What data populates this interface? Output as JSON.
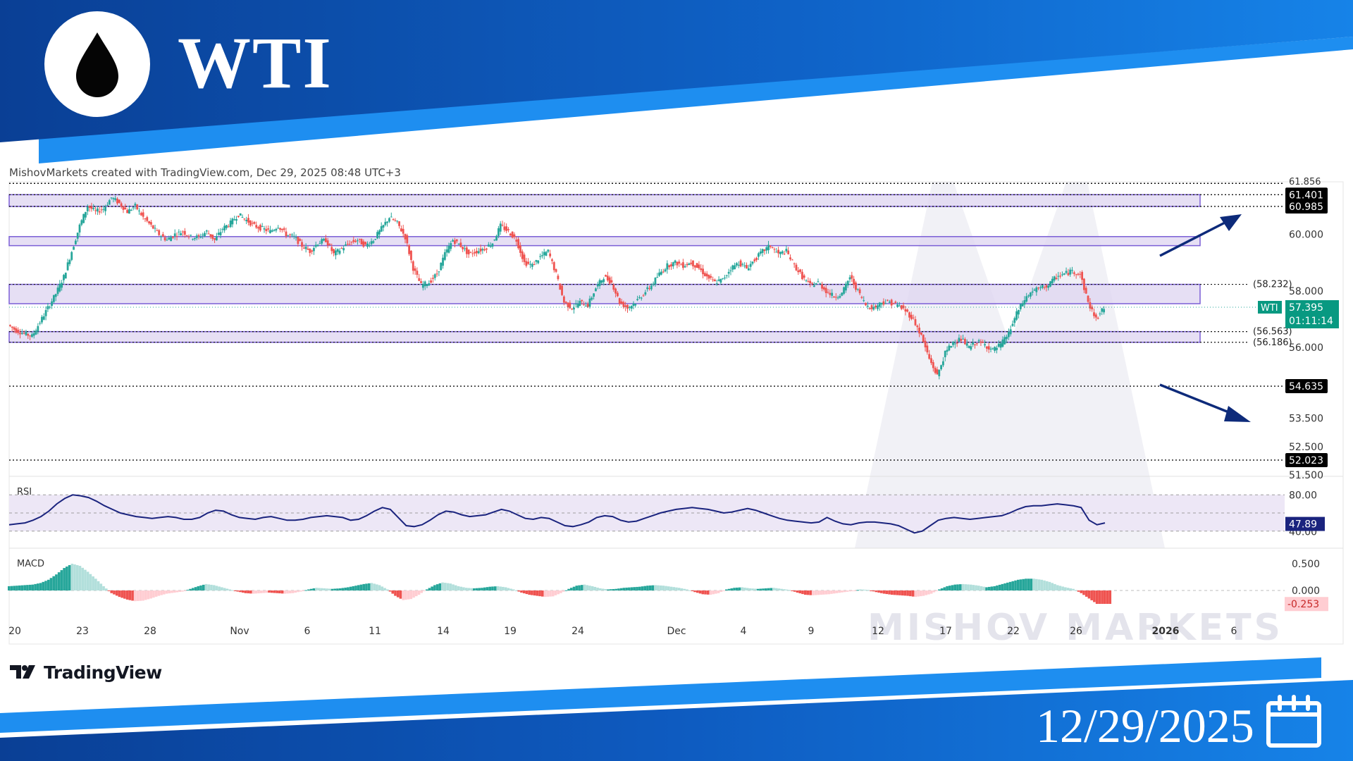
{
  "header": {
    "title": "WTI",
    "icon": "oil-drop-icon",
    "colors": {
      "banner": "#0d47a1",
      "accent": "#1e88e5"
    }
  },
  "caption": "MishovMarkets created with TradingView.com, Dec 29, 2025 08:48 UTC+3",
  "footer": {
    "tradingview_label": "TradingView",
    "date": "12/29/2025",
    "calendar_icon": "calendar-icon"
  },
  "watermark": "MISHOV MARKETS",
  "chart_data": {
    "type": "candlestick",
    "symbol": "WTI",
    "last_price": "57.395",
    "countdown": "01:11:14",
    "ylim": [
      51.5,
      61.856
    ],
    "y_ticks": [
      "60.000",
      "58.000",
      "56.000",
      "53.500",
      "52.500",
      "51.500"
    ],
    "y_top_partial": "61.856",
    "x_ticks": [
      "20",
      "23",
      "28",
      "Nov",
      "6",
      "11",
      "14",
      "19",
      "24",
      "Dec",
      "4",
      "9",
      "12",
      "17",
      "22",
      "26",
      "2026",
      "6"
    ],
    "levels_boxed": [
      "61.401",
      "60.985",
      "54.635",
      "52.023"
    ],
    "levels_plain": [
      "(58.232)",
      "(56.563)",
      "(56.186)"
    ],
    "zones": [
      {
        "low": 60.985,
        "high": 61.401
      },
      {
        "low": 59.6,
        "high": 59.92
      },
      {
        "low": 57.55,
        "high": 58.232
      },
      {
        "low": 56.186,
        "high": 56.563
      }
    ],
    "arrows": [
      "up-right arrow above resistance",
      "down-right arrow below support"
    ],
    "price_path": [
      56.8,
      56.6,
      56.5,
      56.4,
      56.9,
      57.4,
      57.9,
      58.5,
      59.4,
      60.3,
      61.0,
      60.8,
      60.9,
      61.3,
      61.1,
      60.8,
      61.0,
      60.6,
      60.3,
      60.0,
      59.8,
      60.0,
      60.1,
      59.9,
      59.9,
      60.1,
      59.8,
      60.2,
      60.4,
      60.7,
      60.5,
      60.3,
      60.2,
      60.1,
      60.3,
      60.0,
      59.9,
      59.6,
      59.4,
      59.7,
      59.8,
      59.3,
      59.5,
      59.7,
      59.8,
      59.6,
      59.8,
      60.2,
      60.6,
      60.4,
      59.9,
      58.8,
      58.2,
      58.3,
      58.6,
      59.3,
      59.8,
      59.6,
      59.3,
      59.4,
      59.5,
      59.7,
      60.3,
      60.1,
      59.8,
      59.0,
      58.9,
      59.2,
      59.4,
      58.6,
      57.6,
      57.4,
      57.6,
      57.5,
      58.1,
      58.5,
      58.3,
      57.6,
      57.4,
      57.6,
      57.9,
      58.2,
      58.6,
      58.9,
      59.0,
      58.9,
      59.0,
      58.8,
      58.5,
      58.3,
      58.4,
      58.8,
      59.0,
      58.8,
      59.1,
      59.4,
      59.6,
      59.3,
      59.4,
      58.9,
      58.5,
      58.2,
      58.3,
      58.0,
      57.8,
      57.9,
      58.5,
      58.0,
      57.5,
      57.4,
      57.6,
      57.6,
      57.5,
      57.3,
      57.0,
      56.4,
      55.6,
      55.0,
      55.8,
      56.2,
      56.3,
      56.0,
      56.2,
      56.1,
      55.9,
      56.1,
      56.5,
      57.2,
      57.7,
      58.0,
      58.1,
      58.2,
      58.5,
      58.6,
      58.7,
      58.6,
      57.6,
      57.0,
      57.4
    ],
    "rsi": {
      "label": "RSI",
      "value": "47.89",
      "ticks": [
        "80.00",
        "40.00"
      ],
      "band": [
        40,
        80
      ],
      "path": [
        47,
        48,
        49,
        52,
        56,
        62,
        70,
        76,
        80,
        79,
        77,
        73,
        68,
        64,
        60,
        58,
        56,
        55,
        54,
        55,
        56,
        55,
        53,
        53,
        55,
        60,
        63,
        62,
        58,
        55,
        54,
        53,
        55,
        56,
        54,
        52,
        52,
        53,
        55,
        56,
        57,
        56,
        55,
        52,
        53,
        57,
        62,
        66,
        64,
        55,
        46,
        45,
        47,
        52,
        58,
        62,
        61,
        58,
        56,
        57,
        58,
        61,
        64,
        62,
        58,
        54,
        53,
        55,
        54,
        50,
        46,
        45,
        47,
        50,
        55,
        57,
        56,
        52,
        50,
        51,
        54,
        57,
        60,
        62,
        64,
        65,
        66,
        65,
        64,
        62,
        60,
        61,
        63,
        65,
        63,
        60,
        57,
        54,
        52,
        51,
        50,
        49,
        50,
        55,
        51,
        48,
        47,
        49,
        50,
        50,
        49,
        48,
        46,
        42,
        38,
        40,
        46,
        52,
        54,
        55,
        54,
        53,
        54,
        55,
        56,
        57,
        60,
        64,
        67,
        68,
        68,
        69,
        70,
        69,
        68,
        66,
        52,
        47,
        49
      ]
    },
    "macd": {
      "label": "MACD",
      "value": "-0.253",
      "ticks": [
        "0.500",
        "0.000"
      ],
      "hist": [
        0.08,
        0.09,
        0.1,
        0.11,
        0.14,
        0.2,
        0.3,
        0.42,
        0.5,
        0.46,
        0.35,
        0.22,
        0.08,
        -0.05,
        -0.12,
        -0.17,
        -0.2,
        -0.19,
        -0.15,
        -0.1,
        -0.06,
        -0.04,
        -0.02,
        0.03,
        0.08,
        0.12,
        0.1,
        0.06,
        0.02,
        -0.02,
        -0.05,
        -0.06,
        -0.05,
        -0.04,
        -0.05,
        -0.06,
        -0.05,
        -0.02,
        0.02,
        0.05,
        0.04,
        0.03,
        0.04,
        0.06,
        0.09,
        0.12,
        0.14,
        0.1,
        0.02,
        -0.1,
        -0.18,
        -0.16,
        -0.08,
        0.02,
        0.1,
        0.15,
        0.13,
        0.08,
        0.05,
        0.04,
        0.05,
        0.07,
        0.08,
        0.06,
        0.02,
        -0.04,
        -0.08,
        -0.1,
        -0.12,
        -0.11,
        -0.05,
        0.03,
        0.09,
        0.11,
        0.08,
        0.04,
        0.02,
        0.03,
        0.05,
        0.06,
        0.07,
        0.09,
        0.1,
        0.09,
        0.07,
        0.05,
        0.02,
        -0.03,
        -0.07,
        -0.08,
        -0.05,
        0.02,
        0.05,
        0.06,
        0.04,
        0.03,
        0.04,
        0.05,
        0.03,
        0.01,
        -0.04,
        -0.08,
        -0.09,
        -0.08,
        -0.07,
        -0.05,
        -0.03,
        -0.01,
        0.02,
        0.01,
        -0.03,
        -0.06,
        -0.08,
        -0.09,
        -0.1,
        -0.12,
        -0.1,
        -0.06,
        0.02,
        0.08,
        0.11,
        0.12,
        0.11,
        0.09,
        0.06,
        0.08,
        0.12,
        0.16,
        0.2,
        0.22,
        0.22,
        0.2,
        0.16,
        0.1,
        0.06,
        0.03,
        -0.05,
        -0.15,
        -0.25,
        -0.25
      ]
    },
    "colors": {
      "up": "#26a69a",
      "down": "#ef5350",
      "zone_fill": "#ddd4f0",
      "zone_stroke": "#7b5fd6",
      "rsi_line": "#1a237e",
      "rsi_band": "#ede7f6",
      "arrow": "#0d2a7a",
      "last_price_badge": "#089981"
    }
  }
}
